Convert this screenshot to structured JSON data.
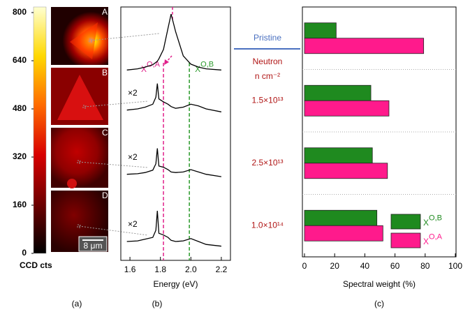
{
  "chart_data": [
    {
      "type": "colorbar",
      "title": "CCD cts",
      "ylim": [
        0,
        800
      ],
      "yticks": [
        0,
        160,
        320,
        480,
        640,
        800
      ],
      "colormap": [
        "#000000",
        "#6e0000",
        "#d80000",
        "#ff6a00",
        "#ffd800",
        "#ffffd0"
      ],
      "image_labels": [
        "A",
        "B",
        "C",
        "D"
      ],
      "scale_bar": "8 μm",
      "panel_label": "(a)"
    },
    {
      "type": "line",
      "xlabel": "Energy (eV)",
      "panel_label": "(b)",
      "xlim": [
        1.54,
        2.26
      ],
      "xticks": [
        1.6,
        1.8,
        {
          "value": 2,
          "label": "2.0"
        },
        2.2
      ],
      "ylim": [
        0,
        4.3
      ],
      "x": [
        1.58,
        1.65,
        1.7,
        1.75,
        1.77,
        1.78,
        1.79,
        1.82,
        1.85,
        1.87,
        1.9,
        1.95,
        2.0,
        2.05,
        2.1,
        2.2
      ],
      "series": [
        {
          "color": "#000000",
          "values": [
            3.23,
            3.25,
            3.28,
            3.32,
            3.36,
            3.38,
            3.42,
            3.58,
            3.94,
            4.18,
            3.88,
            3.47,
            3.33,
            3.28,
            3.25,
            3.23
          ]
        },
        {
          "color": "#000000",
          "values": [
            2.55,
            2.57,
            2.6,
            2.65,
            2.77,
            3.0,
            2.74,
            2.69,
            2.65,
            2.61,
            2.58,
            2.6,
            2.65,
            2.62,
            2.57,
            2.52
          ]
        },
        {
          "color": "#000000",
          "values": [
            1.46,
            1.47,
            1.49,
            1.53,
            1.64,
            1.9,
            1.6,
            1.58,
            1.54,
            1.5,
            1.49,
            1.5,
            1.54,
            1.5,
            1.46,
            1.42
          ]
        },
        {
          "color": "#000000",
          "values": [
            0.32,
            0.33,
            0.36,
            0.39,
            0.51,
            0.84,
            0.46,
            0.43,
            0.39,
            0.34,
            0.32,
            0.33,
            0.37,
            0.32,
            0.27,
            0.24
          ]
        }
      ],
      "annotations": [
        "×2",
        "×2",
        "×2"
      ],
      "vlines": [
        {
          "value": 1.82,
          "color": "#e0208a",
          "label": "X",
          "label_sup": "O,A"
        },
        {
          "value": 1.99,
          "color": "#2a9a2a",
          "label": "X",
          "label_sup": "O,B"
        }
      ]
    },
    {
      "type": "bar",
      "orientation": "horizontal",
      "xlabel": "Spectral weight (%)",
      "panel_label": "(c)",
      "categories": [
        "Pristine",
        "1.5×10¹³",
        "2.5×10¹³",
        "1.0×10¹⁴"
      ],
      "category_colors": [
        "#4a70c0",
        "#b01515",
        "#b01515",
        "#b01515"
      ],
      "annotation": "Neutron",
      "annotation_unit": "n cm⁻²",
      "xlim": [
        0,
        100
      ],
      "xticks": [
        0,
        20,
        40,
        60,
        80,
        100
      ],
      "series": [
        {
          "name": "X",
          "name_sup": "O,B",
          "color": "#1f8a1f",
          "values": [
            21,
            44,
            45,
            48
          ]
        },
        {
          "name": "X",
          "name_sup": "O,A",
          "color": "#ff1a8c",
          "values": [
            79,
            56,
            55,
            52
          ]
        }
      ],
      "legend": "lower right"
    }
  ]
}
